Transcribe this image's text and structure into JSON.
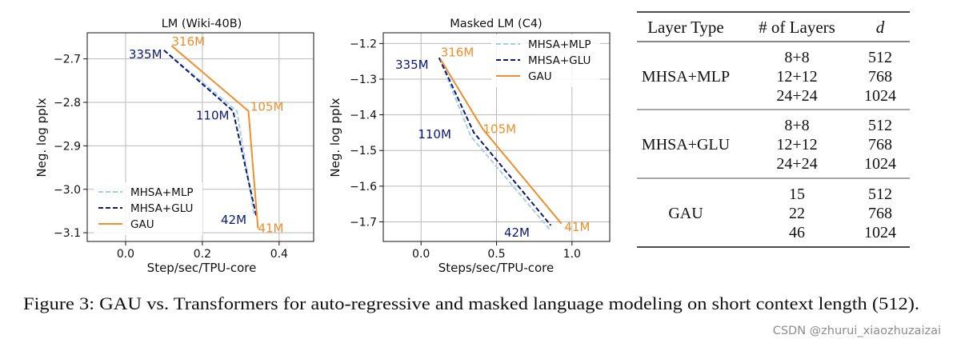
{
  "chart_data": [
    {
      "type": "line",
      "title": "LM (Wiki-40B)",
      "xlabel": "Step/sec/TPU-core",
      "ylabel": "Neg. log pplx",
      "xlim": [
        -0.1,
        0.49
      ],
      "ylim": [
        -3.12,
        -2.64
      ],
      "xticks": [
        0.0,
        0.2,
        0.4
      ],
      "xtick_labels": [
        "0.0",
        "0.2",
        "0.4"
      ],
      "yticks": [
        -2.7,
        -2.8,
        -2.9,
        -3.0,
        -3.1
      ],
      "ytick_labels": [
        "−2.7",
        "−2.8",
        "−2.9",
        "−3.0",
        "−3.1"
      ],
      "grid": true,
      "legend_position": "bottom-left",
      "series": [
        {
          "name": "MHSA+MLP",
          "color": "#a6cee3",
          "style": "dashed",
          "x": [
            0.1,
            0.29,
            0.335
          ],
          "y": [
            -2.68,
            -2.82,
            -3.06
          ]
        },
        {
          "name": "MHSA+GLU",
          "color": "#0a1a7a",
          "style": "dashed",
          "x": [
            0.1,
            0.28,
            0.34
          ],
          "y": [
            -2.68,
            -2.82,
            -3.06
          ]
        },
        {
          "name": "GAU",
          "color": "#f28e2b",
          "style": "solid",
          "x": [
            0.12,
            0.32,
            0.345
          ],
          "y": [
            -2.67,
            -2.82,
            -3.09
          ]
        }
      ],
      "annotations": [
        {
          "text": "335M",
          "x": 0.095,
          "y": -2.69,
          "color": "#0a1a7a"
        },
        {
          "text": "316M",
          "x": 0.12,
          "y": -2.66,
          "color": "#f28e2b"
        },
        {
          "text": "110M",
          "x": 0.27,
          "y": -2.83,
          "color": "#0a1a7a"
        },
        {
          "text": "105M",
          "x": 0.325,
          "y": -2.81,
          "color": "#f28e2b"
        },
        {
          "text": "42M",
          "x": 0.315,
          "y": -3.07,
          "color": "#0a1a7a"
        },
        {
          "text": "41M",
          "x": 0.345,
          "y": -3.09,
          "color": "#f28e2b"
        }
      ]
    },
    {
      "type": "line",
      "title": "Masked LM (C4)",
      "xlabel": "Steps/sec/TPU-core",
      "ylabel": "Neg. log pplx",
      "xlim": [
        -0.25,
        1.25
      ],
      "ylim": [
        -1.755,
        -1.17
      ],
      "xticks": [
        0.0,
        0.5,
        1.0
      ],
      "xtick_labels": [
        "0.0",
        "0.5",
        "1.0"
      ],
      "yticks": [
        -1.2,
        -1.3,
        -1.4,
        -1.5,
        -1.6,
        -1.7
      ],
      "ytick_labels": [
        "−1.2",
        "−1.3",
        "−1.4",
        "−1.5",
        "−1.6",
        "−1.7"
      ],
      "grid": true,
      "legend_position": "top-right",
      "series": [
        {
          "name": "MHSA+MLP",
          "color": "#a6cee3",
          "style": "dashed",
          "x": [
            0.12,
            0.33,
            0.85
          ],
          "y": [
            -1.24,
            -1.46,
            -1.72
          ]
        },
        {
          "name": "MHSA+GLU",
          "color": "#0a1a7a",
          "style": "dashed",
          "x": [
            0.12,
            0.35,
            0.86
          ],
          "y": [
            -1.24,
            -1.45,
            -1.71
          ]
        },
        {
          "name": "GAU",
          "color": "#f28e2b",
          "style": "solid",
          "x": [
            0.13,
            0.41,
            0.93
          ],
          "y": [
            -1.245,
            -1.44,
            -1.705
          ]
        }
      ],
      "annotations": [
        {
          "text": "335M",
          "x": 0.05,
          "y": -1.26,
          "color": "#0a1a7a"
        },
        {
          "text": "316M",
          "x": 0.13,
          "y": -1.225,
          "color": "#f28e2b"
        },
        {
          "text": "110M",
          "x": 0.2,
          "y": -1.455,
          "color": "#0a1a7a"
        },
        {
          "text": "105M",
          "x": 0.41,
          "y": -1.44,
          "color": "#f28e2b"
        },
        {
          "text": "42M",
          "x": 0.72,
          "y": -1.73,
          "color": "#0a1a7a"
        },
        {
          "text": "41M",
          "x": 0.95,
          "y": -1.715,
          "color": "#f28e2b"
        }
      ]
    }
  ],
  "table": {
    "headers": [
      "Layer Type",
      "# of Layers",
      "d"
    ],
    "groups": [
      {
        "type": "MHSA+MLP",
        "rows": [
          [
            "8+8",
            "512"
          ],
          [
            "12+12",
            "768"
          ],
          [
            "24+24",
            "1024"
          ]
        ]
      },
      {
        "type": "MHSA+GLU",
        "rows": [
          [
            "8+8",
            "512"
          ],
          [
            "12+12",
            "768"
          ],
          [
            "24+24",
            "1024"
          ]
        ]
      },
      {
        "type": "GAU",
        "rows": [
          [
            "15",
            "512"
          ],
          [
            "22",
            "768"
          ],
          [
            "46",
            "1024"
          ]
        ]
      }
    ]
  },
  "caption": "Figure 3: GAU vs. Transformers for auto-regressive and masked language modeling on short context length (512).",
  "watermark": "CSDN @zhurui_xiaozhuzaizai"
}
